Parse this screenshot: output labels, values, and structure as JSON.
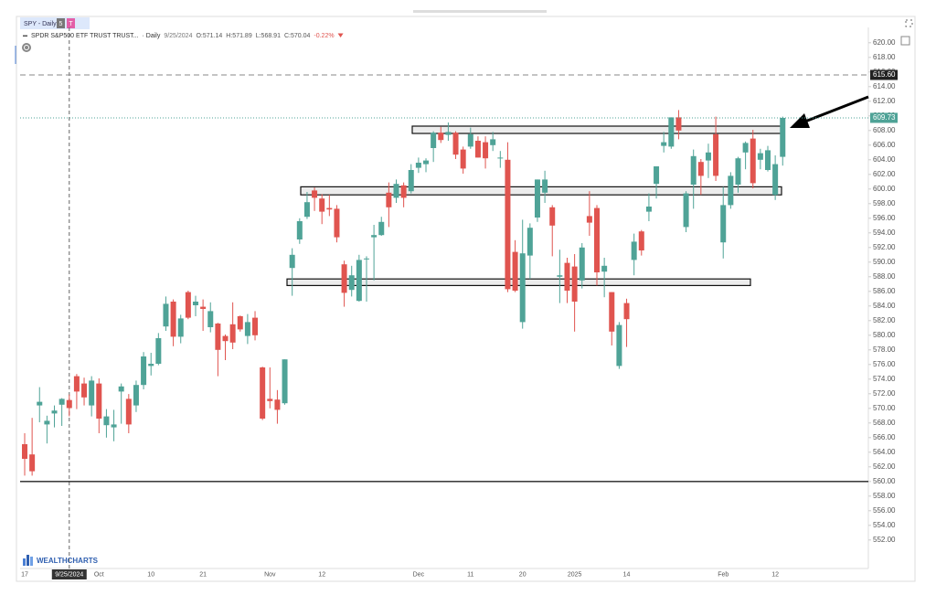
{
  "chart_data": {
    "type": "candlestick",
    "tab": {
      "title": "SPY - Daily",
      "badges": [
        "5",
        "T"
      ]
    },
    "legend": {
      "name": "SPDR S&P500 ETF TRUST TRUST...",
      "interval": "· Daily",
      "date": "9/25/2024",
      "items": [
        "O:571.14",
        "H:571.89",
        "L:568.91",
        "C:570.04",
        "-0.22%"
      ]
    },
    "watermark": "WEALTHCHARTS",
    "up_color": "#4fa397",
    "down_color": "#e0544f",
    "crosshair": {
      "index": 6,
      "label": "9/25/2024"
    },
    "categories": [
      "17",
      null,
      null,
      null,
      null,
      null,
      "9/25/2024",
      null,
      null,
      null,
      "Oct",
      null,
      null,
      null,
      null,
      null,
      null,
      "10",
      null,
      null,
      null,
      null,
      null,
      null,
      "21",
      null,
      null,
      null,
      null,
      null,
      null,
      null,
      null,
      "Nov",
      null,
      null,
      null,
      null,
      null,
      null,
      "12",
      null,
      null,
      null,
      null,
      null,
      null,
      null,
      null,
      null,
      null,
      null,
      null,
      "Dec",
      null,
      null,
      null,
      null,
      null,
      null,
      "11",
      null,
      null,
      null,
      null,
      null,
      null,
      "20",
      null,
      null,
      null,
      null,
      null,
      null,
      "2025",
      null,
      null,
      null,
      null,
      null,
      null,
      "14",
      null,
      null,
      null,
      null,
      null,
      null,
      null,
      null,
      null,
      null,
      null,
      null,
      "Feb",
      null,
      null,
      null,
      null,
      null,
      null,
      "12",
      null
    ],
    "open": [
      565.1,
      563.7,
      570.4,
      567.8,
      569.3,
      570.5,
      571.14,
      574.4,
      573.4,
      570.4,
      573.4,
      567.7,
      567.4,
      572.3,
      571.3,
      570.4,
      573.2,
      575.8,
      576.1,
      581.2,
      584.6,
      579.8,
      585.9,
      584.1,
      583.9,
      581.1,
      581.6,
      579.9,
      581.5,
      582.6,
      579.9,
      582.4,
      575.6,
      571.3,
      571.2,
      570.7,
      589.2,
      593.1,
      596.2,
      599.8,
      598.7,
      597.4,
      597.3,
      589.7,
      586.2,
      584.7,
      590.4,
      593.4,
      593.7,
      599.5,
      598.8,
      600.5,
      599.7,
      602.9,
      603.4,
      605.6,
      607.7,
      607.4,
      607.7,
      605.4,
      605.8,
      606.6,
      606.4,
      606.0,
      604.2,
      604.0,
      591.4,
      581.8,
      590.9,
      596.1,
      599.5,
      597.5,
      588.0,
      589.9,
      589.4,
      587.5,
      596.3,
      597.4,
      588.7,
      585.9,
      575.8,
      584.4,
      590.3,
      594.2,
      596.9,
      600.7,
      605.9,
      605.8,
      609.8,
      594.8,
      600.6,
      603.7,
      603.9,
      607.5,
      592.7,
      597.8,
      600.6,
      605.0,
      606.9,
      604.0,
      602.6,
      599.2,
      604.4
    ],
    "high": [
      566.6,
      568.7,
      572.9,
      569.0,
      570.4,
      571.4,
      571.89,
      574.7,
      574.2,
      574.4,
      574.1,
      569.9,
      569.8,
      573.4,
      571.96,
      573.8,
      577.7,
      577.6,
      580.3,
      585.3,
      584.9,
      582.8,
      586.1,
      585.4,
      584.9,
      584.5,
      581.7,
      580.1,
      584.5,
      582.7,
      582.9,
      583.3,
      575.7,
      575.6,
      572.5,
      576.7,
      591.9,
      596.0,
      599.6,
      600.2,
      599.3,
      599.2,
      597.8,
      590.2,
      589.5,
      591.0,
      590.8,
      595.1,
      596.2,
      600.9,
      601.3,
      600.9,
      603.4,
      604.3,
      604.2,
      607.9,
      608.5,
      609.1,
      607.9,
      605.8,
      608.4,
      607.2,
      607.2,
      607.8,
      605.2,
      606.4,
      593.0,
      595.8,
      595.3,
      601.3,
      602.5,
      597.8,
      591.7,
      590.6,
      591.1,
      592.6,
      599.7,
      597.8,
      590.6,
      585.9,
      581.8,
      585.0,
      593.9,
      594.4,
      599.4,
      603.1,
      607.8,
      609.8,
      610.8,
      599.7,
      605.4,
      604.1,
      606.2,
      609.9,
      600.3,
      602.3,
      604.4,
      606.5,
      608.1,
      605.5,
      605.9,
      604.6,
      609.9
    ],
    "low": [
      560.8,
      560.8,
      568.1,
      565.2,
      567.4,
      567.6,
      568.91,
      569.9,
      570.4,
      568.9,
      566.6,
      566.0,
      565.5,
      567.9,
      566.6,
      569.5,
      572.6,
      574.5,
      575.9,
      580.6,
      578.5,
      578.9,
      582.2,
      582.6,
      580.6,
      580.4,
      574.4,
      576.6,
      578.1,
      580.5,
      578.8,
      579.3,
      568.4,
      570.0,
      567.9,
      570.5,
      585.4,
      592.5,
      595.9,
      597.0,
      595.2,
      596.3,
      592.7,
      583.9,
      585.3,
      584.6,
      584.6,
      587.5,
      593.6,
      594.8,
      598.1,
      597.5,
      599.4,
      602.2,
      602.3,
      603.7,
      606.3,
      606.6,
      604.1,
      602.1,
      605.5,
      604.3,
      602.8,
      605.2,
      602.9,
      585.9,
      585.9,
      580.9,
      587.7,
      595.5,
      598.1,
      590.8,
      584.4,
      584.4,
      580.5,
      586.4,
      593.6,
      586.8,
      585.2,
      578.6,
      575.4,
      578.4,
      588.2,
      590.9,
      595.6,
      598.7,
      605.0,
      605.5,
      606.8,
      594.1,
      597.3,
      599.2,
      601.5,
      601.1,
      590.5,
      597.3,
      599.5,
      602.7,
      600.1,
      602.7,
      602.4,
      598.5,
      603.2
    ],
    "close": [
      563.1,
      561.4,
      570.9,
      568.3,
      569.7,
      571.3,
      570.04,
      572.3,
      571.5,
      573.8,
      568.6,
      568.9,
      567.8,
      573.0,
      567.8,
      573.2,
      577.1,
      576.1,
      579.6,
      584.3,
      579.8,
      582.3,
      582.4,
      584.6,
      583.6,
      583.3,
      578.0,
      579.2,
      579.0,
      580.8,
      581.8,
      580.0,
      568.6,
      571.0,
      569.8,
      576.7,
      591.0,
      595.6,
      598.2,
      598.8,
      596.9,
      597.2,
      593.4,
      585.8,
      588.2,
      590.3,
      590.5,
      593.7,
      595.5,
      597.5,
      600.7,
      598.8,
      602.6,
      603.6,
      603.9,
      607.7,
      606.7,
      607.8,
      604.7,
      602.8,
      607.5,
      604.3,
      604.2,
      606.8,
      604.3,
      586.3,
      586.1,
      591.2,
      594.7,
      601.3,
      601.3,
      595.0,
      588.2,
      586.1,
      584.6,
      592.0,
      595.4,
      588.6,
      589.5,
      580.5,
      581.4,
      582.2,
      592.8,
      591.6,
      597.6,
      603.1,
      606.4,
      609.8,
      608.0,
      599.4,
      604.5,
      601.8,
      605.0,
      601.8,
      597.8,
      601.8,
      604.2,
      606.3,
      600.8,
      604.9,
      605.3,
      603.4,
      609.73
    ],
    "ylim": [
      548.1,
      622.1
    ],
    "yticks": [
      {
        "value": 620,
        "label": "620.00"
      },
      {
        "value": 618,
        "label": "618.00"
      },
      {
        "value": 616,
        "label": "616.00"
      },
      {
        "value": 614,
        "label": "614.00"
      },
      {
        "value": 612,
        "label": "612.00"
      },
      {
        "value": 610,
        "label": "610.00"
      },
      {
        "value": 608,
        "label": "608.00"
      },
      {
        "value": 606,
        "label": "606.00"
      },
      {
        "value": 604,
        "label": "604.00"
      },
      {
        "value": 602,
        "label": "602.00"
      },
      {
        "value": 600,
        "label": "600.00"
      },
      {
        "value": 598,
        "label": "598.00"
      },
      {
        "value": 596,
        "label": "596.00"
      },
      {
        "value": 594,
        "label": "594.00"
      },
      {
        "value": 592,
        "label": "592.00"
      },
      {
        "value": 590,
        "label": "590.00"
      },
      {
        "value": 588,
        "label": "588.00"
      },
      {
        "value": 586,
        "label": "586.00"
      },
      {
        "value": 584,
        "label": "584.00"
      },
      {
        "value": 582,
        "label": "582.00"
      },
      {
        "value": 580,
        "label": "580.00"
      },
      {
        "value": 578,
        "label": "578.00"
      },
      {
        "value": 576,
        "label": "576.00"
      },
      {
        "value": 574,
        "label": "574.00"
      },
      {
        "value": 572,
        "label": "572.00"
      },
      {
        "value": 570,
        "label": "570.00"
      },
      {
        "value": 568,
        "label": "568.00"
      },
      {
        "value": 566,
        "label": "566.00"
      },
      {
        "value": 564,
        "label": "564.00"
      },
      {
        "value": 562,
        "label": "562.00"
      },
      {
        "value": 560,
        "label": "560.00"
      },
      {
        "value": 558,
        "label": "558.00"
      },
      {
        "value": 556,
        "label": "556.00"
      },
      {
        "value": 554,
        "label": "554.00"
      },
      {
        "value": 552,
        "label": "552.00"
      }
    ],
    "grid": false,
    "lines": [
      {
        "value": 615.6,
        "label": "615.60",
        "style": "dashed"
      },
      {
        "value": 560,
        "style": "solid"
      }
    ],
    "last_price": {
      "value": 609.73,
      "label": "609.73"
    },
    "zones": [
      {
        "low": 607.6,
        "high": 608.6
      },
      {
        "low": 599.2,
        "high": 600.3
      },
      {
        "low": 586.8,
        "high": 587.7
      }
    ]
  }
}
